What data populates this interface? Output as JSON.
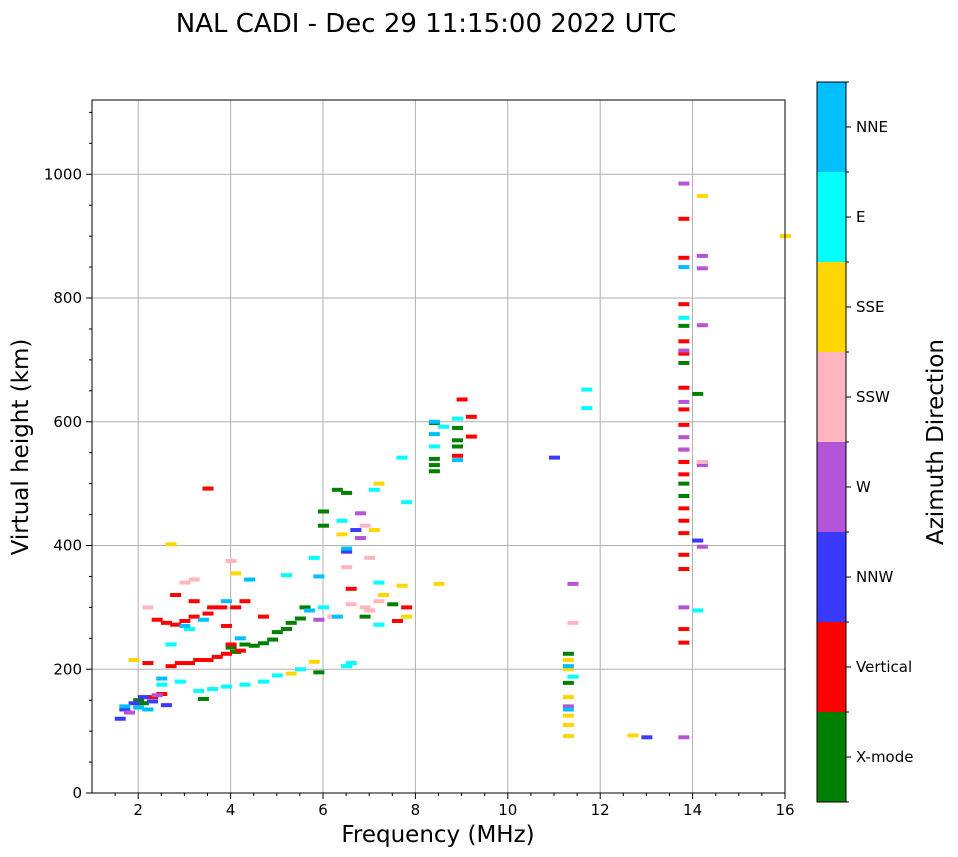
{
  "chart_data": {
    "type": "scatter",
    "title": "NAL CADI - Dec 29 11:15:00 2022 UTC",
    "xlabel": "Frequency (MHz)",
    "ylabel": "Virtual height (km)",
    "xlim": [
      1,
      16
    ],
    "ylim": [
      0,
      1120
    ],
    "xticks": [
      2,
      4,
      6,
      8,
      10,
      12,
      14,
      16
    ],
    "yticks": [
      0,
      200,
      400,
      600,
      800,
      1000
    ],
    "grid": true,
    "colorbar": {
      "label": "Azimuth Direction",
      "categories": [
        {
          "name": "X-mode",
          "color": "#008000"
        },
        {
          "name": "Vertical",
          "color": "#ff0000"
        },
        {
          "name": "NNW",
          "color": "#3a3aff"
        },
        {
          "name": "W",
          "color": "#b455d8"
        },
        {
          "name": "SSW",
          "color": "#ffb6c1"
        },
        {
          "name": "SSE",
          "color": "#ffd700"
        },
        {
          "name": "E",
          "color": "#00ffff"
        },
        {
          "name": "NNE",
          "color": "#00bfff"
        }
      ]
    },
    "series": [
      {
        "name": "X-mode",
        "points": [
          [
            3.4,
            152
          ],
          [
            4.0,
            235
          ],
          [
            4.1,
            228
          ],
          [
            4.3,
            240
          ],
          [
            4.5,
            238
          ],
          [
            4.7,
            242
          ],
          [
            4.9,
            248
          ],
          [
            5.0,
            260
          ],
          [
            5.2,
            265
          ],
          [
            5.3,
            275
          ],
          [
            5.5,
            282
          ],
          [
            5.6,
            300
          ],
          [
            5.9,
            195
          ],
          [
            6.0,
            455
          ],
          [
            6.0,
            432
          ],
          [
            6.5,
            485
          ],
          [
            6.9,
            285
          ],
          [
            7.5,
            305
          ],
          [
            8.4,
            520
          ],
          [
            8.4,
            530
          ],
          [
            8.4,
            540
          ],
          [
            8.4,
            598
          ],
          [
            8.9,
            560
          ],
          [
            8.9,
            570
          ],
          [
            8.9,
            590
          ],
          [
            13.8,
            480
          ],
          [
            13.8,
            500
          ],
          [
            13.8,
            695
          ],
          [
            13.8,
            755
          ],
          [
            14.1,
            645
          ],
          [
            11.3,
            225
          ],
          [
            11.3,
            178
          ],
          [
            2.0,
            150
          ],
          [
            2.1,
            145
          ],
          [
            6.3,
            490
          ]
        ]
      },
      {
        "name": "Vertical",
        "points": [
          [
            2.3,
            155
          ],
          [
            2.5,
            160
          ],
          [
            2.7,
            205
          ],
          [
            2.9,
            210
          ],
          [
            3.1,
            210
          ],
          [
            3.3,
            215
          ],
          [
            3.5,
            215
          ],
          [
            3.7,
            220
          ],
          [
            3.9,
            225
          ],
          [
            2.4,
            280
          ],
          [
            2.6,
            275
          ],
          [
            2.8,
            272
          ],
          [
            3.0,
            278
          ],
          [
            3.2,
            285
          ],
          [
            3.5,
            290
          ],
          [
            3.8,
            300
          ],
          [
            4.0,
            240
          ],
          [
            4.2,
            230
          ],
          [
            4.1,
            300
          ],
          [
            3.5,
            492
          ],
          [
            4.7,
            285
          ],
          [
            2.8,
            320
          ],
          [
            3.2,
            310
          ],
          [
            3.6,
            300
          ],
          [
            4.3,
            310
          ],
          [
            2.2,
            210
          ],
          [
            3.9,
            270
          ],
          [
            6.6,
            330
          ],
          [
            7.8,
            300
          ],
          [
            7.6,
            278
          ],
          [
            9.0,
            636
          ],
          [
            9.2,
            608
          ],
          [
            9.2,
            576
          ],
          [
            8.9,
            545
          ],
          [
            13.8,
            243
          ],
          [
            13.8,
            265
          ],
          [
            13.8,
            362
          ],
          [
            13.8,
            385
          ],
          [
            13.8,
            420
          ],
          [
            13.8,
            440
          ],
          [
            13.8,
            460
          ],
          [
            13.8,
            515
          ],
          [
            13.8,
            535
          ],
          [
            13.8,
            555
          ],
          [
            13.8,
            595
          ],
          [
            13.8,
            620
          ],
          [
            13.8,
            655
          ],
          [
            13.8,
            710
          ],
          [
            13.8,
            730
          ],
          [
            13.8,
            790
          ],
          [
            13.8,
            865
          ],
          [
            13.8,
            928
          ],
          [
            14.2,
            533
          ]
        ]
      },
      {
        "name": "NNW",
        "points": [
          [
            1.6,
            120
          ],
          [
            1.7,
            135
          ],
          [
            1.9,
            145
          ],
          [
            2.1,
            155
          ],
          [
            2.3,
            148
          ],
          [
            2.6,
            142
          ],
          [
            11.0,
            542
          ],
          [
            13.0,
            90
          ],
          [
            14.1,
            408
          ],
          [
            6.5,
            390
          ],
          [
            6.7,
            425
          ]
        ]
      },
      {
        "name": "W",
        "points": [
          [
            1.8,
            130
          ],
          [
            2.4,
            158
          ],
          [
            6.8,
            452
          ],
          [
            6.8,
            412
          ],
          [
            11.4,
            338
          ],
          [
            11.3,
            140
          ],
          [
            13.8,
            90
          ],
          [
            13.8,
            300
          ],
          [
            13.8,
            555
          ],
          [
            13.8,
            575
          ],
          [
            13.8,
            632
          ],
          [
            13.8,
            715
          ],
          [
            13.8,
            985
          ],
          [
            14.2,
            398
          ],
          [
            14.2,
            530
          ],
          [
            14.2,
            756
          ],
          [
            14.2,
            848
          ],
          [
            14.2,
            868
          ],
          [
            5.9,
            280
          ]
        ]
      },
      {
        "name": "SSW",
        "points": [
          [
            3.2,
            345
          ],
          [
            3.0,
            340
          ],
          [
            2.2,
            300
          ],
          [
            4.0,
            375
          ],
          [
            6.2,
            285
          ],
          [
            6.6,
            305
          ],
          [
            6.9,
            300
          ],
          [
            7.0,
            295
          ],
          [
            7.2,
            310
          ],
          [
            7.0,
            380
          ],
          [
            6.9,
            432
          ],
          [
            6.5,
            365
          ],
          [
            11.4,
            275
          ],
          [
            14.2,
            535
          ]
        ]
      },
      {
        "name": "SSE",
        "points": [
          [
            2.7,
            402
          ],
          [
            1.9,
            215
          ],
          [
            4.1,
            355
          ],
          [
            5.8,
            212
          ],
          [
            6.4,
            418
          ],
          [
            7.2,
            500
          ],
          [
            7.1,
            425
          ],
          [
            7.3,
            320
          ],
          [
            7.7,
            335
          ],
          [
            7.8,
            285
          ],
          [
            8.5,
            338
          ],
          [
            11.3,
            92
          ],
          [
            11.3,
            110
          ],
          [
            11.3,
            125
          ],
          [
            11.3,
            155
          ],
          [
            11.3,
            200
          ],
          [
            11.3,
            215
          ],
          [
            12.7,
            93
          ],
          [
            14.2,
            965
          ],
          [
            16.0,
            900
          ],
          [
            5.3,
            193
          ]
        ]
      },
      {
        "name": "E",
        "points": [
          [
            2.5,
            175
          ],
          [
            2.9,
            180
          ],
          [
            3.3,
            165
          ],
          [
            3.6,
            168
          ],
          [
            3.9,
            172
          ],
          [
            4.3,
            175
          ],
          [
            4.7,
            180
          ],
          [
            5.0,
            190
          ],
          [
            5.5,
            200
          ],
          [
            6.5,
            205
          ],
          [
            6.6,
            210
          ],
          [
            7.7,
            542
          ],
          [
            7.8,
            470
          ],
          [
            7.1,
            490
          ],
          [
            6.4,
            440
          ],
          [
            5.8,
            380
          ],
          [
            11.7,
            622
          ],
          [
            11.7,
            652
          ],
          [
            13.8,
            768
          ],
          [
            14.1,
            295
          ],
          [
            8.4,
            560
          ],
          [
            8.9,
            605
          ],
          [
            8.6,
            592
          ],
          [
            7.2,
            340
          ],
          [
            7.2,
            272
          ],
          [
            5.2,
            352
          ],
          [
            6.0,
            300
          ],
          [
            2.7,
            240
          ],
          [
            3.1,
            265
          ],
          [
            11.4,
            188
          ]
        ]
      },
      {
        "name": "NNE",
        "points": [
          [
            1.7,
            140
          ],
          [
            2.0,
            138
          ],
          [
            2.2,
            135
          ],
          [
            2.5,
            185
          ],
          [
            3.0,
            270
          ],
          [
            3.4,
            280
          ],
          [
            3.9,
            310
          ],
          [
            4.4,
            345
          ],
          [
            4.2,
            250
          ],
          [
            5.7,
            295
          ],
          [
            5.9,
            350
          ],
          [
            6.5,
            395
          ],
          [
            8.4,
            580
          ],
          [
            8.4,
            600
          ],
          [
            8.9,
            538
          ],
          [
            11.3,
            205
          ],
          [
            11.3,
            135
          ],
          [
            13.8,
            850
          ],
          [
            6.3,
            285
          ]
        ]
      }
    ]
  }
}
